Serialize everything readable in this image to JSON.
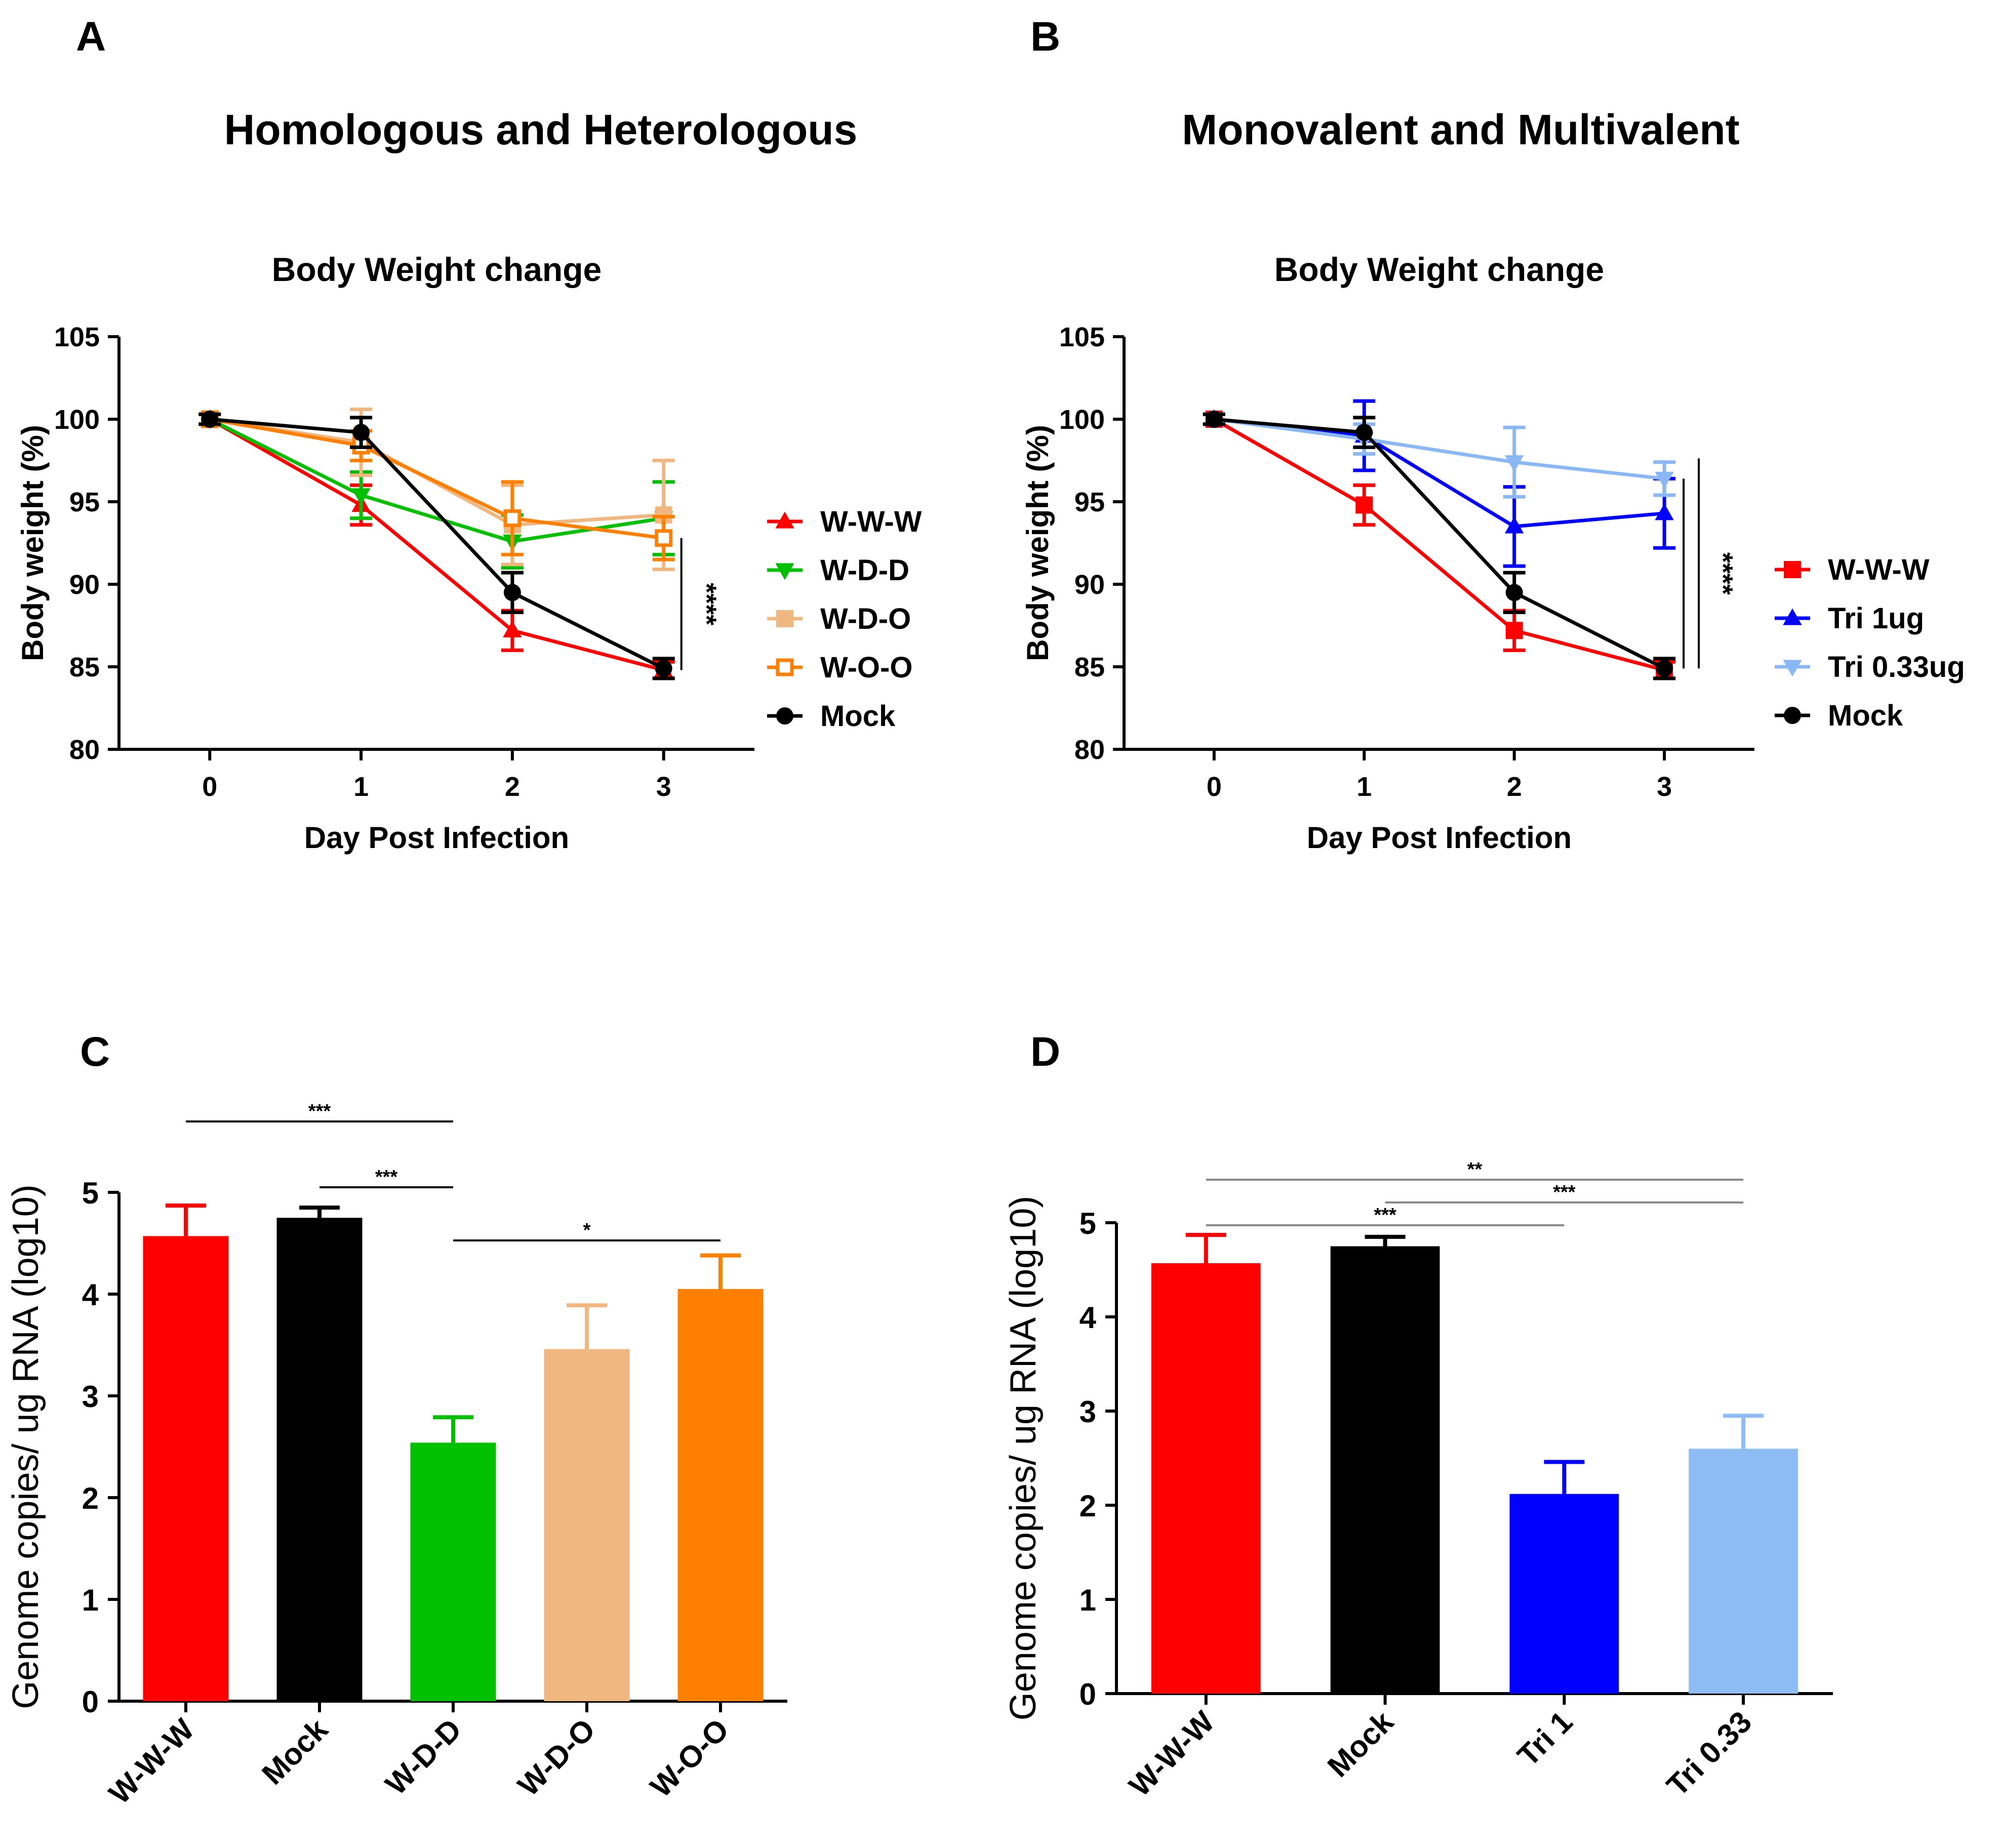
{
  "panels": {
    "A": {
      "letter": "A",
      "section_title": "Homologous and Heterologous"
    },
    "B": {
      "letter": "B",
      "section_title": "Monovalent and Multivalent"
    },
    "C": {
      "letter": "C"
    },
    "D": {
      "letter": "D"
    }
  },
  "chart_data": [
    {
      "id": "A",
      "type": "line",
      "title": "Body Weight change",
      "xlabel": "Day Post Infection",
      "ylabel": "Body weight (%)",
      "x": [
        0,
        1,
        2,
        3
      ],
      "xlim": [
        -0.6,
        3.6
      ],
      "ylim": [
        80,
        105
      ],
      "xticks": [
        0,
        1,
        2,
        3
      ],
      "yticks": [
        80,
        85,
        90,
        95,
        100,
        105
      ],
      "series": [
        {
          "name": "W-W-W",
          "color": "#ff0000",
          "marker": "triangle-up",
          "values": [
            100,
            94.8,
            87.2,
            84.8
          ],
          "errors": [
            0.3,
            1.2,
            1.2,
            0.5
          ]
        },
        {
          "name": "W-D-D",
          "color": "#00c000",
          "marker": "triangle-down",
          "values": [
            100,
            95.4,
            92.6,
            94.0
          ],
          "errors": [
            0.3,
            1.4,
            1.6,
            2.2
          ]
        },
        {
          "name": "W-D-O",
          "color": "#f0b880",
          "marker": "square-filled",
          "values": [
            100,
            98.6,
            93.6,
            94.2
          ],
          "errors": [
            0.3,
            2.0,
            2.4,
            3.3
          ]
        },
        {
          "name": "W-O-O",
          "color": "#ff8000",
          "marker": "square-open",
          "values": [
            100,
            98.4,
            94.0,
            92.8
          ],
          "errors": [
            0.3,
            0.9,
            2.2,
            1.3
          ]
        },
        {
          "name": "Mock",
          "color": "#000000",
          "marker": "circle",
          "values": [
            100,
            99.2,
            89.5,
            84.9
          ],
          "errors": [
            0.3,
            0.9,
            1.2,
            0.6
          ]
        }
      ],
      "significance": [
        {
          "label": "****",
          "from": "W-O-O",
          "to": "W-W-W",
          "at_x": 3
        }
      ]
    },
    {
      "id": "B",
      "type": "line",
      "title": "Body Weight change",
      "xlabel": "Day Post Infection",
      "ylabel": "Body weight (%)",
      "x": [
        0,
        1,
        2,
        3
      ],
      "xlim": [
        -0.6,
        3.6
      ],
      "ylim": [
        80,
        105
      ],
      "xticks": [
        0,
        1,
        2,
        3
      ],
      "yticks": [
        80,
        85,
        90,
        95,
        100,
        105
      ],
      "series": [
        {
          "name": "W-W-W",
          "color": "#ff0000",
          "marker": "square-filled",
          "values": [
            100,
            94.8,
            87.2,
            84.8
          ],
          "errors": [
            0.3,
            1.2,
            1.2,
            0.5
          ]
        },
        {
          "name": "Tri 1ug",
          "color": "#0000ff",
          "marker": "triangle-up",
          "values": [
            100,
            99.0,
            93.5,
            94.3
          ],
          "errors": [
            0.3,
            2.1,
            2.4,
            2.1
          ]
        },
        {
          "name": "Tri 0.33ug",
          "color": "#8ab8f4",
          "marker": "triangle-down",
          "values": [
            100,
            98.8,
            97.4,
            96.4
          ],
          "errors": [
            0.3,
            0.9,
            2.1,
            1.0
          ]
        },
        {
          "name": "Mock",
          "color": "#000000",
          "marker": "circle",
          "values": [
            100,
            99.2,
            89.5,
            84.9
          ],
          "errors": [
            0.3,
            0.9,
            1.2,
            0.6
          ]
        }
      ],
      "significance": [
        {
          "label": "****",
          "from": "Tri 0.33ug",
          "to": "Mock",
          "at_x": 3
        }
      ]
    },
    {
      "id": "C",
      "type": "bar",
      "ylabel": "Genome copies/ ug RNA  (log10)",
      "categories": [
        "W-W-W",
        "Mock",
        "W-D-D",
        "W-D-O",
        "W-O-O"
      ],
      "colors": [
        "#ff0000",
        "#000000",
        "#00c000",
        "#f0b880",
        "#ff8000"
      ],
      "values": [
        4.57,
        4.75,
        2.54,
        3.46,
        4.05
      ],
      "errors": [
        0.3,
        0.1,
        0.25,
        0.43,
        0.33
      ],
      "ylim": [
        0,
        5
      ],
      "yticks": [
        0,
        1,
        2,
        3,
        4,
        5
      ],
      "significance": [
        {
          "label": "***",
          "from": 0,
          "to": 2
        },
        {
          "label": "***",
          "from": 1,
          "to": 2
        },
        {
          "label": "*",
          "from": 2,
          "to": 4
        }
      ]
    },
    {
      "id": "D",
      "type": "bar",
      "ylabel": "Genome copies/ ug RNA  (log10)",
      "categories": [
        "W-W-W",
        "Mock",
        "Tri 1",
        "Tri 0.33"
      ],
      "colors": [
        "#ff0000",
        "#000000",
        "#0000ff",
        "#8ebcf4"
      ],
      "values": [
        4.57,
        4.75,
        2.12,
        2.6
      ],
      "errors": [
        0.3,
        0.1,
        0.34,
        0.35
      ],
      "ylim": [
        0,
        5
      ],
      "yticks": [
        0,
        1,
        2,
        3,
        4,
        5
      ],
      "significance": [
        {
          "label": "**",
          "from": 0,
          "to": 3
        },
        {
          "label": "***",
          "from": 1,
          "to": 3
        },
        {
          "label": "***",
          "from": 0,
          "to": 2
        }
      ]
    }
  ]
}
